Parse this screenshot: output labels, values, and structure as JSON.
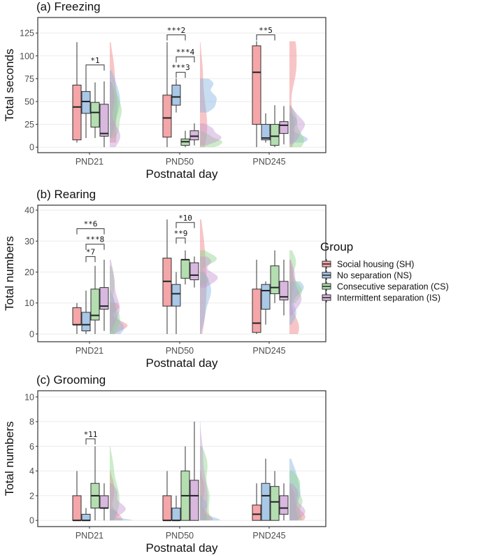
{
  "chart_data": [
    {
      "type": "boxplot",
      "title": "(a) Freezing",
      "xlabel": "Postnatal day",
      "ylabel": "Total seconds",
      "ylim": [
        -6,
        142
      ],
      "yticks": [
        "0",
        "25",
        "50",
        "75",
        "100",
        "125"
      ],
      "categories": [
        "PND21",
        "PND50",
        "PND245"
      ],
      "series": [
        {
          "name": "Social housing (SH)",
          "stats": [
            [
              5,
              8,
              44,
              68,
              115
            ],
            [
              0,
              11,
              32,
              57,
              115
            ],
            [
              0,
              25,
              82,
              111,
              116
            ]
          ]
        },
        {
          "name": "No separation (NS)",
          "stats": [
            [
              10,
              37,
              50,
              61,
              84
            ],
            [
              38,
              46,
              55,
              68,
              75
            ],
            [
              5,
              8,
              10,
              25,
              37
            ]
          ]
        },
        {
          "name": "Consecutive separation (CS)",
          "stats": [
            [
              10,
              22,
              38,
              49,
              71
            ],
            [
              0,
              2,
              6,
              9,
              18
            ],
            [
              0,
              2,
              12,
              25,
              46
            ]
          ]
        },
        {
          "name": "Intermittent separation (IS)",
          "stats": [
            [
              0,
              12,
              15,
              47,
              72
            ],
            [
              2,
              8,
              12,
              18,
              26
            ],
            [
              3,
              15,
              24,
              28,
              45
            ]
          ]
        }
      ],
      "significance": [
        {
          "label": "*1",
          "category": 0,
          "from": 1,
          "to": 3,
          "y": 90
        },
        {
          "label": "***2",
          "category": 1,
          "from": 0,
          "to": 2,
          "y": 123
        },
        {
          "label": "***4",
          "category": 1,
          "from": 1,
          "to": 3,
          "y": 99
        },
        {
          "label": "***3",
          "category": 1,
          "from": 1,
          "to": 2,
          "y": 82
        },
        {
          "label": "**5",
          "category": 2,
          "from": 0,
          "to": 2,
          "y": 123
        }
      ]
    },
    {
      "type": "boxplot",
      "title": "(b) Rearing",
      "xlabel": "Postnatal day",
      "ylabel": "Total numbers",
      "ylim": [
        -2.5,
        41.6
      ],
      "yticks": [
        "0",
        "10",
        "20",
        "30",
        "40"
      ],
      "categories": [
        "PND21",
        "PND50",
        "PND245"
      ],
      "series": [
        {
          "name": "Social housing (SH)",
          "stats": [
            [
              0,
              3,
              3,
              8.5,
              10
            ],
            [
              0,
              9,
              17,
              24.5,
              37
            ],
            [
              0,
              0.5,
              3.5,
              14.5,
              24
            ]
          ]
        },
        {
          "name": "No separation (NS)",
          "stats": [
            [
              0,
              1,
              3,
              7,
              14
            ],
            [
              0,
              9,
              13,
              16,
              20
            ],
            [
              3,
              8,
              14,
              16,
              17
            ]
          ]
        },
        {
          "name": "Consecutive separation (CS)",
          "stats": [
            [
              0,
              4.5,
              6,
              14.5,
              22
            ],
            [
              16,
              18,
              24,
              24,
              27
            ],
            [
              10,
              13,
              15,
              22,
              27
            ]
          ]
        },
        {
          "name": "Intermittent separation (IS)",
          "stats": [
            [
              1,
              8,
              9,
              15,
              24
            ],
            [
              15,
              17.5,
              19,
              23,
              25
            ],
            [
              6,
              11,
              12,
              17,
              24
            ]
          ]
        }
      ],
      "significance": [
        {
          "label": "**6",
          "category": 0,
          "from": 0,
          "to": 3,
          "y": 34
        },
        {
          "label": "***8",
          "category": 0,
          "from": 1,
          "to": 3,
          "y": 29
        },
        {
          "label": "*7",
          "category": 0,
          "from": 1,
          "to": 2,
          "y": 25
        },
        {
          "label": "*10",
          "category": 1,
          "from": 1,
          "to": 3,
          "y": 36
        },
        {
          "label": "**9",
          "category": 1,
          "from": 1,
          "to": 2,
          "y": 31
        }
      ]
    },
    {
      "type": "boxplot",
      "title": "(c) Grooming",
      "xlabel": "Postnatal day",
      "ylabel": "Total numbers",
      "ylim": [
        -0.5,
        10.5
      ],
      "yticks": [
        "0",
        "2",
        "4",
        "6",
        "8",
        "10"
      ],
      "categories": [
        "PND21",
        "PND50",
        "PND245"
      ],
      "series": [
        {
          "name": "Social housing (SH)",
          "stats": [
            [
              0,
              0,
              0,
              2,
              4
            ],
            [
              0,
              0,
              0,
              2,
              4
            ],
            [
              0,
              0,
              0.5,
              1.25,
              3
            ]
          ]
        },
        {
          "name": "No separation (NS)",
          "stats": [
            [
              0,
              0,
              0,
              0.5,
              1
            ],
            [
              0,
              0,
              0,
              1,
              2
            ],
            [
              0,
              0,
              2,
              3,
              5
            ]
          ]
        },
        {
          "name": "Consecutive separation (CS)",
          "stats": [
            [
              0,
              1,
              2,
              3,
              6
            ],
            [
              0,
              0,
              2,
              4,
              6
            ],
            [
              0,
              0,
              1.5,
              2.75,
              4
            ]
          ]
        },
        {
          "name": "Intermittent separation (IS)",
          "stats": [
            [
              0,
              1,
              1,
              2,
              3
            ],
            [
              0,
              0,
              2,
              3.25,
              8
            ],
            [
              0,
              0.5,
              1,
              2,
              3
            ]
          ]
        }
      ],
      "significance": [
        {
          "label": "*11",
          "category": 0,
          "from": 1,
          "to": 2,
          "y": 6.6
        }
      ]
    }
  ],
  "legend": {
    "title": "Group",
    "position": "right",
    "items": [
      "Social housing (SH)",
      "No separation (NS)",
      "Consecutive separation (CS)",
      "Intermittent separation (IS)"
    ]
  },
  "colors": {
    "box_fill": [
      "#F4A6A8",
      "#A9C7E6",
      "#B4DEB0",
      "#D8B8DF"
    ],
    "violin_fill": [
      "#F07F82",
      "#86B3DF",
      "#8ED38A",
      "#C497D1"
    ]
  }
}
